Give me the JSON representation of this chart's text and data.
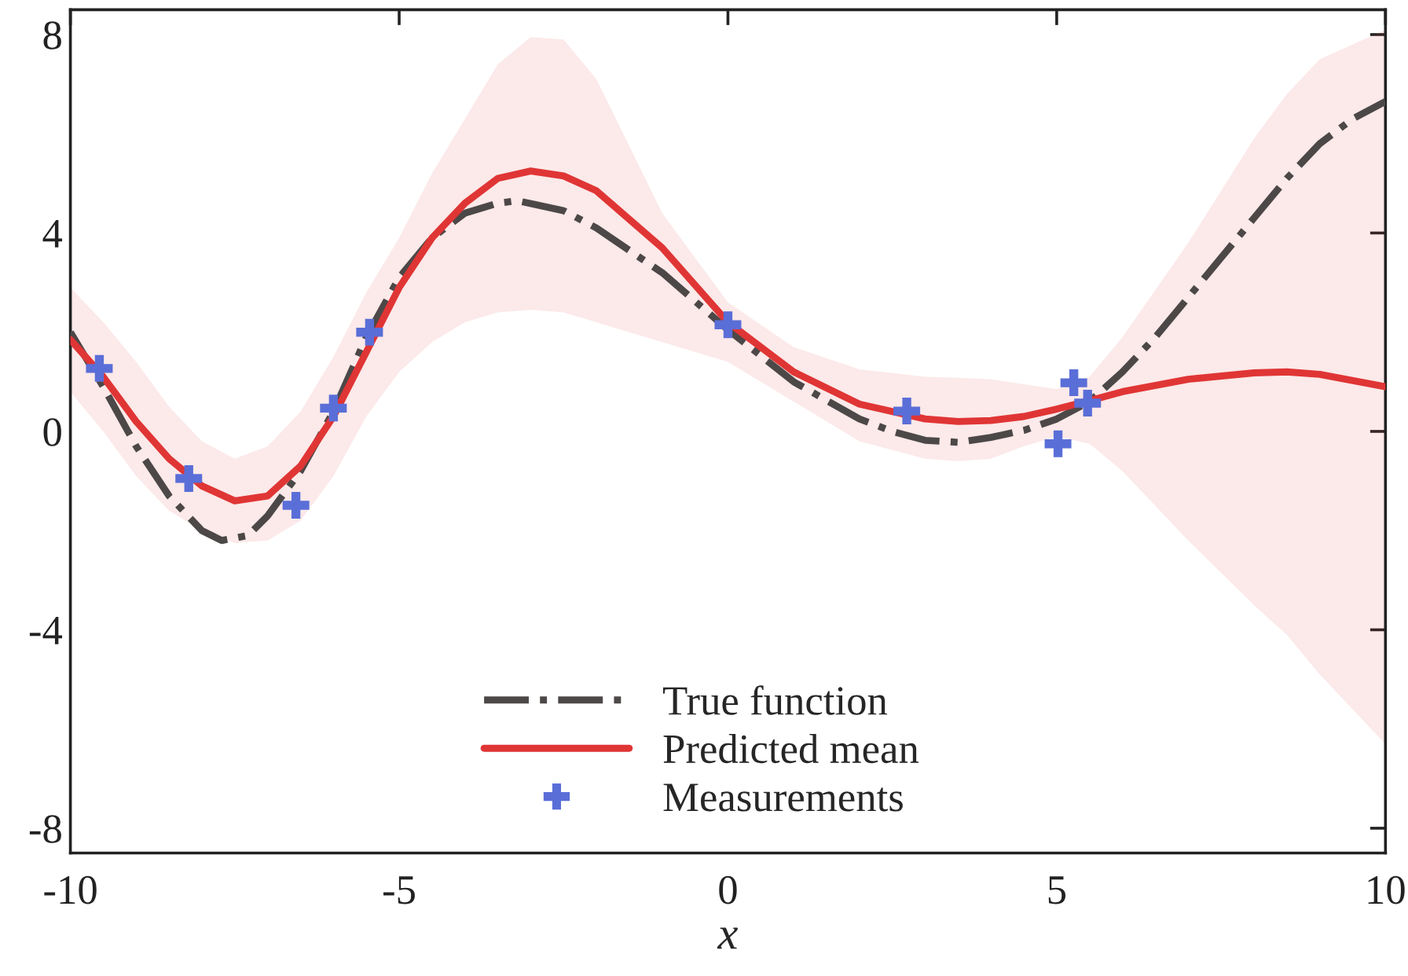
{
  "chart_data": {
    "type": "line",
    "xlabel": "x",
    "xlim": [
      -10,
      10
    ],
    "ylim": [
      -8.5,
      8.5
    ],
    "xticks": [
      -10,
      -5,
      0,
      5,
      10
    ],
    "yticks": [
      -8,
      -4,
      0,
      4,
      8
    ],
    "grid": false,
    "legend": "bottom",
    "series": [
      {
        "name": "True function",
        "color": "#4d4848",
        "line_style": "dashdot",
        "marker": "none",
        "x": [
          -10,
          -9.5,
          -9,
          -8.5,
          -8,
          -7.7,
          -7.3,
          -7,
          -6.5,
          -6,
          -5.5,
          -5,
          -4.5,
          -4,
          -3.5,
          -3.2,
          -2.5,
          -2,
          -1,
          0,
          1,
          2,
          2.5,
          3,
          3.5,
          4,
          4.5,
          5,
          5.5,
          6,
          6.5,
          7,
          7.5,
          8,
          8.5,
          9,
          9.5,
          10
        ],
        "values": [
          2.0,
          0.9,
          -0.3,
          -1.3,
          -2.0,
          -2.2,
          -2.1,
          -1.7,
          -0.8,
          0.4,
          1.9,
          3.1,
          3.9,
          4.4,
          4.6,
          4.65,
          4.45,
          4.1,
          3.2,
          2.05,
          1.0,
          0.25,
          0.0,
          -0.18,
          -0.22,
          -0.12,
          0.02,
          0.25,
          0.6,
          1.2,
          1.9,
          2.7,
          3.5,
          4.3,
          5.1,
          5.8,
          6.3,
          6.65
        ]
      },
      {
        "name": "Predicted mean",
        "color": "#e03535",
        "line_style": "solid",
        "marker": "none",
        "x": [
          -10,
          -9.5,
          -9,
          -8.5,
          -8,
          -7.5,
          -7,
          -6.5,
          -6,
          -5.5,
          -5,
          -4.5,
          -4,
          -3.5,
          -3,
          -2.5,
          -2,
          -1,
          0,
          1,
          2,
          3,
          3.5,
          4,
          4.5,
          5,
          5.5,
          6,
          7,
          8,
          8.5,
          9,
          10
        ],
        "values": [
          1.85,
          1.1,
          0.2,
          -0.55,
          -1.1,
          -1.4,
          -1.3,
          -0.7,
          0.3,
          1.6,
          2.9,
          3.9,
          4.6,
          5.1,
          5.25,
          5.15,
          4.85,
          3.7,
          2.2,
          1.2,
          0.55,
          0.25,
          0.2,
          0.22,
          0.3,
          0.45,
          0.62,
          0.8,
          1.05,
          1.18,
          1.2,
          1.15,
          0.9
        ],
        "upper": [
          2.9,
          2.2,
          1.4,
          0.5,
          -0.2,
          -0.55,
          -0.3,
          0.4,
          1.5,
          2.8,
          3.9,
          5.2,
          6.3,
          7.4,
          7.95,
          7.9,
          7.1,
          4.4,
          2.6,
          1.7,
          1.25,
          1.1,
          1.08,
          1.05,
          0.95,
          0.85,
          1.1,
          1.9,
          3.8,
          5.9,
          6.8,
          7.5,
          8.1
        ],
        "lower": [
          0.8,
          0.0,
          -0.9,
          -1.6,
          -2.0,
          -2.25,
          -2.2,
          -1.8,
          -0.9,
          0.3,
          1.2,
          1.8,
          2.2,
          2.4,
          2.45,
          2.4,
          2.2,
          1.8,
          1.4,
          0.6,
          -0.2,
          -0.55,
          -0.6,
          -0.55,
          -0.3,
          -0.1,
          -0.25,
          -0.8,
          -2.2,
          -3.5,
          -4.1,
          -4.9,
          -6.3
        ]
      },
      {
        "name": "Measurements",
        "type": "scatter",
        "color": "#5a6ed8",
        "marker": "cross",
        "x": [
          -9.56,
          -8.2,
          -6.57,
          -6.0,
          -5.45,
          0.0,
          2.72,
          5.02,
          5.26,
          5.47
        ],
        "values": [
          1.27,
          -0.95,
          -1.49,
          0.47,
          2.0,
          2.15,
          0.41,
          -0.25,
          0.98,
          0.57
        ]
      }
    ]
  }
}
